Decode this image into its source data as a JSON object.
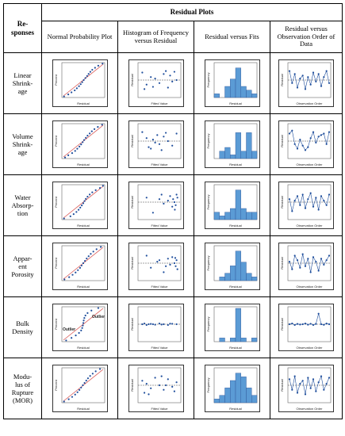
{
  "table": {
    "corner_header": "Re-\nsponses",
    "group_header": "Residual Plots",
    "columns": [
      "Normal Probability Plot",
      "Histogram of Frequency versus Residual",
      "Residual versus Fits",
      "Residual versus Observation Order of Data"
    ],
    "rows": [
      {
        "response": "Linear\nShrink-\nage"
      },
      {
        "response": "Volume\nShrink-\nage"
      },
      {
        "response": "Water\nAbsorp-\ntion"
      },
      {
        "response": "Appar-\nent\nPorosity"
      },
      {
        "response": "Bulk\nDensity"
      },
      {
        "response": "Modu-\nlus of\nRupture\n(MOR)"
      }
    ]
  },
  "axis_labels": {
    "percent": "Percent",
    "residual": "Residual",
    "frequency": "Frequency",
    "fitted_value": "Fitted Value",
    "observation_order": "Observation Order"
  },
  "annotations": {
    "outlier_left": "Outlier",
    "outlier_right": "Outlier"
  },
  "colors": {
    "point": "#1f4e9c",
    "line": "#d9534f",
    "bar": "#5b9bd5",
    "bar_edge": "#2f5597",
    "zero_line": "#444444"
  },
  "plot_data": [
    {
      "npp": [
        -0.9,
        -0.7,
        -0.55,
        -0.4,
        -0.3,
        -0.2,
        -0.12,
        -0.05,
        0.02,
        0.1,
        0.18,
        0.25,
        0.33,
        0.42,
        0.55,
        0.7,
        0.9
      ],
      "fits": [
        [
          0.1,
          0.5
        ],
        [
          0.2,
          -0.3
        ],
        [
          0.3,
          0.2
        ],
        [
          0.15,
          -0.6
        ],
        [
          0.4,
          0.1
        ],
        [
          0.5,
          -0.2
        ],
        [
          0.6,
          0.4
        ],
        [
          0.7,
          -0.5
        ],
        [
          0.75,
          0.3
        ],
        [
          0.8,
          -0.1
        ],
        [
          0.85,
          0.55
        ],
        [
          0.9,
          0.0
        ],
        [
          0.35,
          -0.45
        ],
        [
          0.65,
          0.6
        ]
      ],
      "hist": [
        1,
        0,
        3,
        5,
        8,
        3,
        2,
        1
      ],
      "order": [
        0.6,
        -0.2,
        0.4,
        -0.5,
        0.1,
        0.3,
        -0.6,
        0.2,
        -0.3,
        0.5,
        -0.1,
        0.4,
        -0.4,
        0.2,
        0.6,
        -0.2
      ]
    },
    {
      "npp": [
        -0.85,
        -0.7,
        -0.52,
        -0.38,
        -0.28,
        -0.18,
        -0.1,
        -0.03,
        0.04,
        0.12,
        0.2,
        0.3,
        0.4,
        0.52,
        0.68,
        0.88
      ],
      "fits": [
        [
          0.1,
          0.6
        ],
        [
          0.2,
          0.2
        ],
        [
          0.25,
          -0.4
        ],
        [
          0.35,
          0.1
        ],
        [
          0.45,
          0.4
        ],
        [
          0.5,
          -0.2
        ],
        [
          0.55,
          -0.6
        ],
        [
          0.6,
          0.3
        ],
        [
          0.7,
          0.0
        ],
        [
          0.8,
          -0.3
        ],
        [
          0.9,
          0.5
        ],
        [
          0.4,
          -0.1
        ],
        [
          0.65,
          0.55
        ],
        [
          0.3,
          -0.5
        ]
      ],
      "hist": [
        0,
        2,
        3,
        1,
        7,
        2,
        7,
        2
      ],
      "order": [
        0.5,
        0.7,
        -0.2,
        -0.5,
        0.1,
        -0.3,
        -0.6,
        -0.4,
        0.2,
        0.6,
        -0.1,
        0.3,
        0.4,
        0.5,
        -0.2,
        0.6
      ]
    },
    {
      "npp": [
        -0.9,
        -0.6,
        -0.45,
        -0.32,
        -0.22,
        -0.14,
        -0.07,
        0.0,
        0.06,
        0.12,
        0.2,
        0.3,
        0.42,
        0.58,
        0.78,
        0.92
      ],
      "fits": [
        [
          0.2,
          0.3
        ],
        [
          0.35,
          -0.7
        ],
        [
          0.5,
          0.2
        ],
        [
          0.6,
          -0.1
        ],
        [
          0.7,
          0.1
        ],
        [
          0.75,
          0.4
        ],
        [
          0.8,
          -0.3
        ],
        [
          0.82,
          0.2
        ],
        [
          0.85,
          0.0
        ],
        [
          0.88,
          -0.2
        ],
        [
          0.9,
          0.5
        ],
        [
          0.92,
          0.3
        ],
        [
          0.55,
          0.5
        ],
        [
          0.86,
          -0.5
        ]
      ],
      "hist": [
        2,
        1,
        2,
        3,
        8,
        3,
        2,
        2
      ],
      "order": [
        0.2,
        -0.6,
        0.1,
        0.4,
        -0.2,
        0.5,
        -0.4,
        0.2,
        0.6,
        -0.3,
        0.3,
        -0.5,
        0.4,
        0.1,
        -0.2,
        0.5
      ]
    },
    {
      "npp": [
        -0.88,
        -0.66,
        -0.5,
        -0.36,
        -0.25,
        -0.15,
        -0.08,
        0.0,
        0.08,
        0.16,
        0.25,
        0.35,
        0.47,
        0.62,
        0.82
      ],
      "fits": [
        [
          0.2,
          0.5
        ],
        [
          0.3,
          -0.3
        ],
        [
          0.45,
          0.1
        ],
        [
          0.6,
          -0.6
        ],
        [
          0.7,
          0.3
        ],
        [
          0.75,
          -0.1
        ],
        [
          0.8,
          0.4
        ],
        [
          0.85,
          0.0
        ],
        [
          0.88,
          -0.2
        ],
        [
          0.9,
          0.2
        ],
        [
          0.92,
          -0.4
        ],
        [
          0.5,
          0.2
        ],
        [
          0.65,
          -0.2
        ],
        [
          0.87,
          0.35
        ]
      ],
      "hist": [
        0,
        1,
        2,
        4,
        8,
        5,
        2,
        1
      ],
      "order": [
        0.1,
        -0.4,
        0.5,
        0.2,
        -0.3,
        0.6,
        -0.2,
        0.3,
        -0.6,
        0.4,
        0.1,
        -0.5,
        0.3,
        -0.1,
        0.2,
        0.5
      ]
    },
    {
      "npp": [
        -0.8,
        -0.55,
        -0.35,
        -0.2,
        -0.1,
        -0.05,
        -0.02,
        0.0,
        0.02,
        0.05,
        0.1,
        0.2,
        0.38,
        0.7
      ],
      "fits": [
        [
          0.1,
          0.0
        ],
        [
          0.15,
          0.05
        ],
        [
          0.2,
          -0.05
        ],
        [
          0.3,
          0.02
        ],
        [
          0.4,
          -0.03
        ],
        [
          0.5,
          0.05
        ],
        [
          0.6,
          0.0
        ],
        [
          0.7,
          -0.05
        ],
        [
          0.8,
          0.03
        ],
        [
          0.9,
          0.0
        ],
        [
          0.35,
          0.0
        ],
        [
          0.55,
          -0.02
        ],
        [
          0.75,
          0.04
        ],
        [
          0.25,
          0.0
        ]
      ],
      "hist": [
        0,
        1,
        0,
        1,
        9,
        1,
        0,
        1
      ],
      "order": [
        0.0,
        0.05,
        -0.05,
        0.02,
        -0.02,
        0.0,
        0.05,
        -0.03,
        0.03,
        -0.05,
        0.02,
        0.7,
        0.0,
        -0.04,
        0.05,
        0.0
      ]
    },
    {
      "npp": [
        -0.9,
        -0.68,
        -0.52,
        -0.38,
        -0.27,
        -0.18,
        -0.1,
        -0.02,
        0.06,
        0.14,
        0.22,
        0.32,
        0.44,
        0.58,
        0.78
      ],
      "fits": [
        [
          0.1,
          0.3
        ],
        [
          0.15,
          -0.5
        ],
        [
          0.2,
          0.1
        ],
        [
          0.3,
          -0.2
        ],
        [
          0.4,
          0.5
        ],
        [
          0.5,
          0.0
        ],
        [
          0.6,
          -0.3
        ],
        [
          0.7,
          0.4
        ],
        [
          0.8,
          -0.1
        ],
        [
          0.9,
          0.2
        ],
        [
          0.25,
          -0.6
        ],
        [
          0.55,
          0.6
        ],
        [
          0.65,
          0.0
        ],
        [
          0.85,
          -0.4
        ]
      ],
      "hist": [
        1,
        2,
        4,
        6,
        8,
        7,
        4,
        2
      ],
      "order": [
        0.4,
        -0.3,
        0.6,
        -0.5,
        0.1,
        0.3,
        -0.6,
        0.5,
        -0.2,
        0.4,
        -0.4,
        0.2,
        0.6,
        -0.3,
        0.1,
        0.5
      ]
    }
  ]
}
